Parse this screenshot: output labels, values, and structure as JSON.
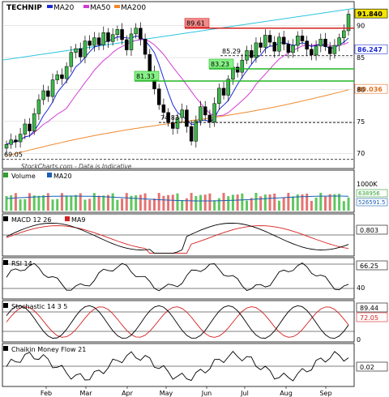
{
  "chart_data": {
    "type": "line",
    "title": "TECHNIP",
    "watermark": "StockCharts.com - Data is Indicative",
    "x_labels": [
      "Feb",
      "Mar",
      "Apr",
      "May",
      "Jun",
      "Jul",
      "Aug",
      "Sep"
    ],
    "price": {
      "ylim": [
        68,
        93
      ],
      "y_ticks": [
        70,
        75,
        80,
        85,
        90
      ],
      "legend": [
        {
          "name": "TECHNIP",
          "color": "#000000"
        },
        {
          "name": "MA20",
          "color": "#1a2bd6"
        },
        {
          "name": "MA50",
          "color": "#d23bd6"
        },
        {
          "name": "MA200",
          "color": "#f08a2c"
        }
      ],
      "close": [
        71.4,
        72.1,
        71.8,
        73.0,
        74.6,
        73.5,
        76.2,
        78.4,
        79.8,
        78.9,
        81.5,
        82.3,
        81.7,
        83.6,
        85.8,
        86.4,
        85.1,
        87.6,
        86.9,
        88.1,
        87.0,
        88.9,
        87.5,
        88.6,
        89.4,
        87.8,
        86.2,
        88.7,
        89.6,
        87.9,
        85.5,
        82.8,
        80.1,
        77.6,
        76.4,
        74.8,
        73.9,
        75.6,
        76.8,
        74.2,
        71.9,
        75.1,
        77.3,
        76.0,
        74.9,
        77.8,
        80.2,
        79.1,
        81.6,
        83.5,
        82.7,
        84.6,
        86.1,
        85.0,
        87.3,
        86.6,
        88.5,
        87.4,
        86.0,
        88.2,
        87.1,
        85.8,
        86.9,
        88.4,
        87.6,
        86.3,
        85.4,
        86.8,
        87.9,
        86.7,
        85.6,
        86.9,
        88.1,
        89.2,
        91.8
      ],
      "price_labels": [
        {
          "text": "89.61",
          "value": 89.61,
          "style": "red-box"
        },
        {
          "text": "85.29",
          "value": 85.29,
          "style": "plain"
        },
        {
          "text": "83.23",
          "value": 83.23,
          "style": "green-box"
        },
        {
          "text": "81.33",
          "value": 81.33,
          "style": "green-box"
        },
        {
          "text": "74.83",
          "value": 74.83,
          "style": "plain"
        },
        {
          "text": "69.05",
          "value": 69.05,
          "style": "plain"
        }
      ],
      "right_tags": [
        {
          "text": "91.840",
          "value": 91.84,
          "color": "#f4e400",
          "textcolor": "#000000"
        },
        {
          "text": "86.247",
          "value": 86.247,
          "color": "#ffffff",
          "textcolor": "#1a2bd6"
        },
        {
          "text": "80.036",
          "value": 80.036,
          "color": "#ffffff",
          "textcolor": "#e07020"
        }
      ]
    },
    "volume": {
      "legend": [
        {
          "name": "Volume",
          "color": "#2fa02f"
        },
        {
          "name": "MA20",
          "color": "#1a5fb4"
        }
      ],
      "y_ticks": [
        "1000K"
      ],
      "tags": [
        {
          "text": "638956",
          "color": "#2fa02f"
        },
        {
          "text": "526591.5",
          "color": "#1a5fb4"
        }
      ]
    },
    "macd": {
      "legend": [
        {
          "name": "MACD 12 26",
          "color": "#000000"
        },
        {
          "name": "MA9",
          "color": "#d42020"
        }
      ],
      "value_tag": "0.803"
    },
    "rsi": {
      "legend": [
        {
          "name": "RSI 14",
          "color": "#000000"
        }
      ],
      "y_ticks": [
        "66.25",
        "40"
      ]
    },
    "stochastic": {
      "legend": [
        {
          "name": "Stochastic 14 3 5",
          "color": "#000000"
        }
      ],
      "tags": [
        {
          "text": "89.44",
          "color": "#000000"
        },
        {
          "text": "72.05",
          "color": "#d42020"
        }
      ],
      "y_ticks": [
        "0"
      ]
    },
    "cmf": {
      "legend": [
        {
          "name": "Chaikin Money Flow 21",
          "color": "#000000"
        }
      ],
      "value_tag": "0.02"
    }
  }
}
